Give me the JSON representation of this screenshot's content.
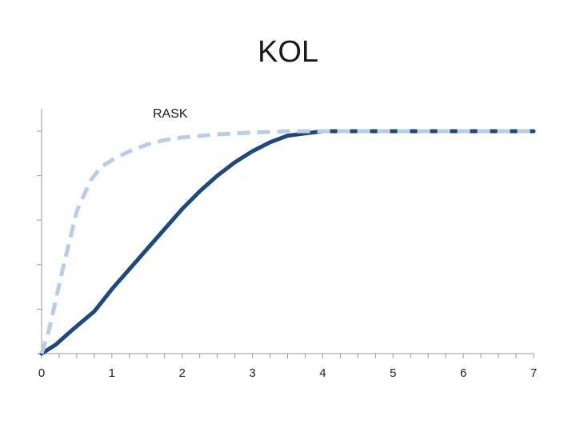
{
  "chart_data": {
    "type": "line",
    "title": "KOL",
    "xlabel": "",
    "ylabel": "",
    "xlim": [
      0,
      7
    ],
    "ylim": [
      0,
      5
    ],
    "x_ticks": [
      "0",
      "1",
      "2",
      "3",
      "4",
      "5",
      "6",
      "7"
    ],
    "y_ticks_labeled": false,
    "grid": false,
    "legend": "none",
    "annotations": [
      {
        "text": "RASK"
      }
    ],
    "series": [
      {
        "color": "#1f497d",
        "style": "solid",
        "x": [
          0,
          0.2,
          0.45,
          0.75,
          1,
          1.5,
          2,
          2.25,
          2.5,
          2.75,
          3,
          3.25,
          3.5,
          3.75,
          4,
          5,
          6,
          7
        ],
        "y": [
          0,
          0.2,
          0.55,
          0.95,
          1.45,
          2.35,
          3.25,
          3.65,
          4.0,
          4.3,
          4.55,
          4.75,
          4.9,
          4.95,
          5,
          5,
          5,
          5
        ]
      },
      {
        "color": "#b9cde5",
        "style": "dashed",
        "x": [
          0,
          0.1,
          0.3,
          0.5,
          0.7,
          0.85,
          1,
          1.25,
          1.5,
          1.75,
          2,
          2.5,
          3,
          3.5,
          4,
          5,
          6,
          7
        ],
        "y": [
          0,
          0.5,
          1.9,
          3.2,
          3.9,
          4.2,
          4.35,
          4.55,
          4.7,
          4.8,
          4.86,
          4.93,
          4.97,
          5,
          5,
          5,
          5,
          5
        ]
      }
    ]
  }
}
